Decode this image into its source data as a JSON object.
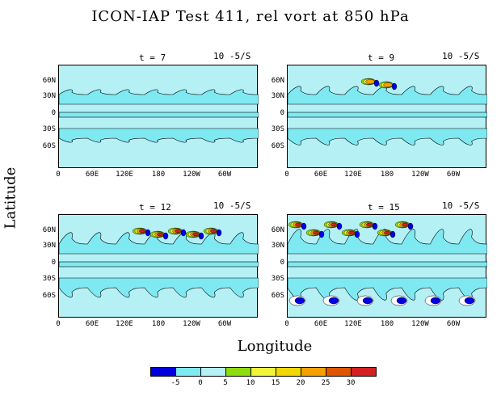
{
  "title": "ICON-IAP Test 411, rel vort at 850 hPa",
  "ylabel": "Latitude",
  "xlabel": "Longitude",
  "lat_ticks": [
    "60N",
    "30N",
    "0",
    "30S",
    "60S"
  ],
  "lon_ticks": [
    "0",
    "60E",
    "120E",
    "180",
    "120W",
    "60W"
  ],
  "panels": [
    {
      "time": "t = 7",
      "units": "10 -5/S"
    },
    {
      "time": "t = 9",
      "units": "10 -5/S"
    },
    {
      "time": "t = 12",
      "units": "10 -5/S"
    },
    {
      "time": "t = 15",
      "units": "10 -5/S"
    }
  ],
  "colorbar": {
    "colors": [
      "#0000dd",
      "#7fe9f2",
      "#b5f0f5",
      "#8fdc10",
      "#f0f53a",
      "#f3d800",
      "#f5a000",
      "#e05500",
      "#d42020"
    ],
    "labels": [
      "-5",
      "0",
      "5",
      "10",
      "15",
      "20",
      "25",
      "30"
    ]
  },
  "field": {
    "background_level": "0 to 5",
    "wave_color": "#7fe9f2",
    "positive_colors": [
      "#8fdc10",
      "#f0f53a",
      "#f5a000",
      "#d42020"
    ],
    "negative_color": "#0000dd"
  }
}
